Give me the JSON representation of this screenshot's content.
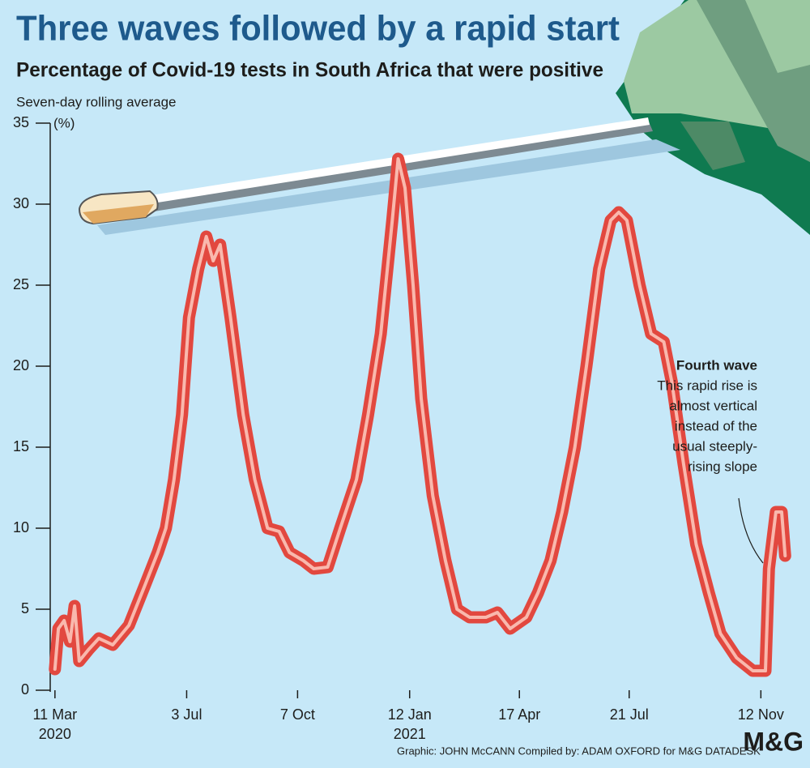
{
  "chart_data": {
    "type": "line",
    "title": "Three waves followed by a rapid start",
    "subtitle": "Percentage of Covid-19 tests in South Africa that were positive",
    "y_label": "Seven-day rolling average",
    "y_unit": "(%)",
    "color": "#e2483f",
    "x": [
      "2020-03-11",
      "2020-03-14",
      "2020-03-19",
      "2020-03-24",
      "2020-03-28",
      "2020-04-01",
      "2020-04-09",
      "2020-04-18",
      "2020-04-30",
      "2020-05-14",
      "2020-05-28",
      "2020-06-08",
      "2020-06-15",
      "2020-06-22",
      "2020-06-29",
      "2020-07-05",
      "2020-07-13",
      "2020-07-20",
      "2020-07-26",
      "2020-08-01",
      "2020-08-10",
      "2020-08-21",
      "2020-08-31",
      "2020-09-11",
      "2020-09-21",
      "2020-09-30",
      "2020-10-12",
      "2020-10-21",
      "2020-11-02",
      "2020-11-13",
      "2020-11-27",
      "2020-12-07",
      "2020-12-18",
      "2020-12-28",
      "2021-01-02",
      "2021-01-08",
      "2021-01-15",
      "2021-01-22",
      "2021-02-01",
      "2021-02-12",
      "2021-02-22",
      "2021-03-05",
      "2021-03-19",
      "2021-03-29",
      "2021-04-09",
      "2021-04-23",
      "2021-05-03",
      "2021-05-14",
      "2021-05-24",
      "2021-06-04",
      "2021-06-14",
      "2021-06-25",
      "2021-07-05",
      "2021-07-12",
      "2021-07-19",
      "2021-07-30",
      "2021-08-09",
      "2021-08-20",
      "2021-08-27",
      "2021-09-06",
      "2021-09-17",
      "2021-09-28",
      "2021-10-08",
      "2021-10-22",
      "2021-11-05",
      "2021-11-16",
      "2021-11-19",
      "2021-11-25",
      "2021-11-30",
      "2021-12-03"
    ],
    "values": [
      1.3,
      3.8,
      4.3,
      3,
      5.2,
      1.8,
      2.5,
      3.2,
      2.8,
      4,
      6.5,
      8.5,
      10,
      13,
      17,
      23,
      26,
      28,
      26.5,
      27.5,
      23,
      17,
      13,
      10,
      9.8,
      8.5,
      8,
      7.5,
      7.6,
      10,
      13,
      17,
      22,
      29,
      32.8,
      31,
      25,
      18,
      12,
      8,
      5,
      4.5,
      4.5,
      4.8,
      3.8,
      4.5,
      6,
      8,
      11,
      15,
      20,
      26,
      29,
      29.5,
      29,
      25,
      22,
      21.5,
      19,
      14,
      9,
      6,
      3.5,
      2,
      1.2,
      1.2,
      7.5,
      11,
      11,
      8.3
    ],
    "xlim": [
      "2020-03-02",
      "2021-12-07"
    ],
    "xticks": [
      {
        "value": "2020-03-11",
        "label": "11 Mar 2020"
      },
      {
        "value": "2020-07-03",
        "label": "3 Jul"
      },
      {
        "value": "2020-10-07",
        "label": "7 Oct"
      },
      {
        "value": "2021-01-12",
        "label": "12 Jan 2021"
      },
      {
        "value": "2021-04-17",
        "label": "17 Apr"
      },
      {
        "value": "2021-07-21",
        "label": "21 Jul"
      },
      {
        "value": "2021-11-12",
        "label": "12 Nov"
      }
    ],
    "ylim": [
      0,
      35
    ],
    "yticks": [
      0,
      5,
      10,
      15,
      20,
      25,
      30,
      35
    ],
    "grid": false,
    "annotation": {
      "title": "Fourth wave",
      "lines": [
        "This rapid rise is",
        "almost vertical",
        "instead of the",
        "usual steeply-",
        "rising slope"
      ]
    },
    "credit": "Graphic: JOHN McCANN  Compiled by: ADAM OXFORD for M&G DATADESK",
    "logo": "M&G"
  }
}
